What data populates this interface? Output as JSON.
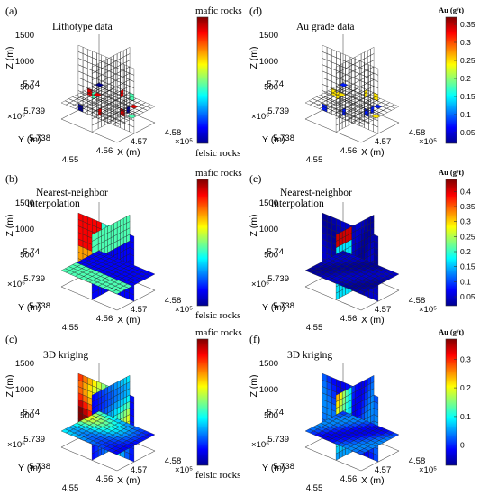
{
  "chart_data": [
    {
      "panel": "(a)",
      "type": "heatmap",
      "title": "Lithotype data",
      "zlabel": "Z (m)",
      "ylabel": "Y (m)",
      "xlabel": "X (m)",
      "z_ticks": [
        "1500",
        "1000",
        "500"
      ],
      "y_ticks": [
        "5.74",
        "5.739",
        "5.738"
      ],
      "y_multiplier": "×10⁶",
      "x_ticks": [
        "4.55",
        "4.56",
        "4.57",
        "4.58"
      ],
      "x_multiplier": "×10⁵",
      "colorbar": {
        "top_label": "mafic rocks",
        "bottom_label": "felsic rocks",
        "ticks": []
      },
      "style": "sparse"
    },
    {
      "panel": "(b)",
      "type": "heatmap",
      "title": "Nearest-neighbor interpolation",
      "title_lines": [
        "Nearest-neighbor",
        "interpolation"
      ],
      "zlabel": "Z (m)",
      "ylabel": "Y (m)",
      "xlabel": "X (m)",
      "z_ticks": [
        "1500",
        "1000",
        "500"
      ],
      "y_ticks": [
        "5.74",
        "5.739",
        "5.738"
      ],
      "y_multiplier": "×10⁶",
      "x_ticks": [
        "4.55",
        "4.56",
        "4.57",
        "4.58"
      ],
      "x_multiplier": "×10⁵",
      "colorbar": {
        "top_label": "mafic rocks",
        "bottom_label": "felsic rocks",
        "ticks": []
      },
      "style": "litho"
    },
    {
      "panel": "(c)",
      "type": "heatmap",
      "title": "3D kriging",
      "zlabel": "Z (m)",
      "ylabel": "Y (m)",
      "xlabel": "X (m)",
      "z_ticks": [
        "1500",
        "1000",
        "500"
      ],
      "y_ticks": [
        "5.74",
        "5.739",
        "5.738"
      ],
      "y_multiplier": "×10⁶",
      "x_ticks": [
        "4.55",
        "4.56",
        "4.57",
        "4.58"
      ],
      "x_multiplier": "×10⁵",
      "colorbar": {
        "top_label": "mafic rocks",
        "bottom_label": "felsic rocks",
        "ticks": []
      },
      "style": "litho-smooth"
    },
    {
      "panel": "(d)",
      "type": "heatmap",
      "title": "Au grade data",
      "zlabel": "Z (m)",
      "ylabel": "Y (m)",
      "xlabel": "X (m)",
      "z_ticks": [
        "1500",
        "1000",
        "500"
      ],
      "y_ticks": [
        "5.74",
        "5.739",
        "5.738"
      ],
      "y_multiplier": "×10⁶",
      "x_ticks": [
        "4.55",
        "4.56",
        "4.57",
        "4.58"
      ],
      "x_multiplier": "×10⁵",
      "colorbar": {
        "top_label": "Au (g/t)",
        "bottom_label": "",
        "ticks": [
          "0.35",
          "0.3",
          "0.25",
          "0.2",
          "0.15",
          "0.1",
          "0.05"
        ],
        "range": [
          0.02,
          0.37
        ]
      },
      "style": "sparse-au"
    },
    {
      "panel": "(e)",
      "type": "heatmap",
      "title": "Nearest-neighbor interpolation",
      "title_lines": [
        "Nearest-neighbor",
        "interpolation"
      ],
      "zlabel": "Z (m)",
      "ylabel": "Y (m)",
      "xlabel": "X (m)",
      "z_ticks": [
        "1500",
        "1000",
        "500"
      ],
      "y_ticks": [
        "5.74",
        "5.739",
        "5.738"
      ],
      "y_multiplier": "×10⁶",
      "x_ticks": [
        "4.55",
        "4.56",
        "4.57",
        "4.58"
      ],
      "x_multiplier": "×10⁵",
      "colorbar": {
        "top_label": "Au (g/t)",
        "bottom_label": "",
        "ticks": [
          "0.4",
          "0.35",
          "0.3",
          "0.25",
          "0.2",
          "0.15",
          "0.1",
          "0.05"
        ],
        "range": [
          0.02,
          0.44
        ]
      },
      "style": "au"
    },
    {
      "panel": "(f)",
      "type": "heatmap",
      "title": "3D kriging",
      "zlabel": "Z (m)",
      "ylabel": "Y (m)",
      "xlabel": "X (m)",
      "z_ticks": [
        "1500",
        "1000",
        "500"
      ],
      "y_ticks": [
        "5.74",
        "5.739",
        "5.738"
      ],
      "y_multiplier": "×10⁶",
      "x_ticks": [
        "4.55",
        "4.56",
        "4.57",
        "4.58"
      ],
      "x_multiplier": "×10⁵",
      "colorbar": {
        "top_label": "Au (g/t)",
        "bottom_label": "",
        "ticks": [
          "0.3",
          "0.2",
          "0.1",
          "0"
        ],
        "range": [
          -0.07,
          0.37
        ]
      },
      "style": "au-smooth"
    }
  ],
  "colors": {
    "colormap": [
      "#00008f",
      "#0000ff",
      "#0080ff",
      "#00ffff",
      "#80ff80",
      "#ffff00",
      "#ff8000",
      "#ff0000",
      "#800000"
    ],
    "grid": "#222222",
    "axes": "#555555"
  }
}
